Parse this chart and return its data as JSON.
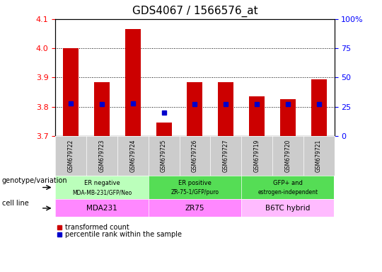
{
  "title": "GDS4067 / 1566576_at",
  "samples": [
    "GSM679722",
    "GSM679723",
    "GSM679724",
    "GSM679725",
    "GSM679726",
    "GSM679727",
    "GSM679719",
    "GSM679720",
    "GSM679721"
  ],
  "bar_values": [
    4.0,
    3.885,
    4.065,
    3.745,
    3.885,
    3.885,
    3.835,
    3.825,
    3.895
  ],
  "percentile_values": [
    28,
    27,
    28,
    20,
    27,
    27,
    27,
    27,
    27
  ],
  "ylim": [
    3.7,
    4.1
  ],
  "ylim_right": [
    0,
    100
  ],
  "yticks_left": [
    3.7,
    3.8,
    3.9,
    4.0,
    4.1
  ],
  "yticks_right": [
    0,
    25,
    50,
    75,
    100
  ],
  "bar_color": "#cc0000",
  "percentile_color": "#0000cc",
  "bar_width": 0.5,
  "geno_colors": [
    "#bbffbb",
    "#55dd55",
    "#55dd55"
  ],
  "cell_line_colors": [
    "#ff88ff",
    "#ff88ff",
    "#ffbbff"
  ],
  "groups": [
    {
      "label_top": "ER negative",
      "label_bot": "MDA-MB-231/GFP/Neo",
      "start": 0,
      "end": 3
    },
    {
      "label_top": "ER positive",
      "label_bot": "ZR-75-1/GFP/puro",
      "start": 3,
      "end": 6
    },
    {
      "label_top": "GFP+ and",
      "label_bot": "estrogen-independent",
      "start": 6,
      "end": 9
    }
  ],
  "cell_lines": [
    {
      "label": "MDA231",
      "start": 0,
      "end": 3
    },
    {
      "label": "ZR75",
      "start": 3,
      "end": 6
    },
    {
      "label": "B6TC hybrid",
      "start": 6,
      "end": 9
    }
  ],
  "bar_legend_label": "transformed count",
  "perc_legend_label": "percentile rank within the sample",
  "geno_label": "genotype/variation",
  "cell_label": "cell line"
}
